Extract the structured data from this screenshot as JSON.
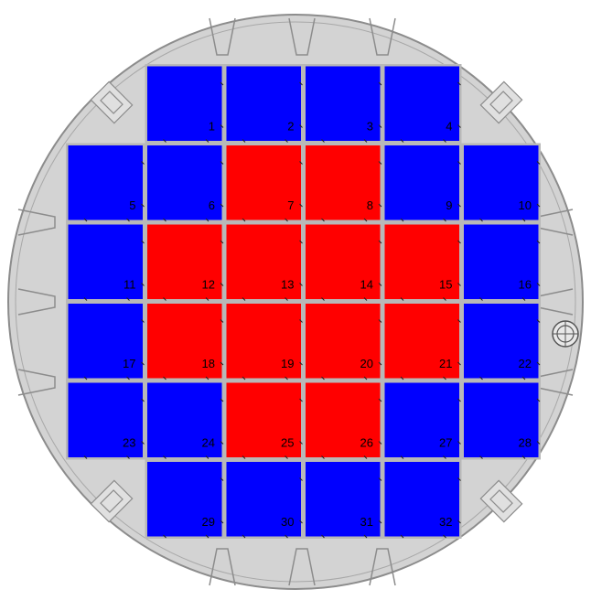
{
  "colors": {
    "background": "#ffffff",
    "vessel_fill": "#d3d3d3",
    "vessel_stroke": "#8c8c8c",
    "grid_line": "#b8b8b8",
    "assembly_blue": "#0000ff",
    "assembly_red": "#ff0000",
    "label": "#000000"
  },
  "layout_rows": [
    {
      "cols": [
        1,
        2,
        3,
        4
      ]
    },
    {
      "cols": [
        0,
        1,
        2,
        3,
        4,
        5
      ]
    },
    {
      "cols": [
        0,
        1,
        2,
        3,
        4,
        5
      ]
    },
    {
      "cols": [
        0,
        1,
        2,
        3,
        4,
        5
      ]
    },
    {
      "cols": [
        0,
        1,
        2,
        3,
        4,
        5
      ]
    },
    {
      "cols": [
        1,
        2,
        3,
        4
      ]
    }
  ],
  "assemblies": [
    {
      "id": "1",
      "type": "blue"
    },
    {
      "id": "2",
      "type": "blue"
    },
    {
      "id": "3",
      "type": "blue"
    },
    {
      "id": "4",
      "type": "blue"
    },
    {
      "id": "5",
      "type": "blue"
    },
    {
      "id": "6",
      "type": "blue"
    },
    {
      "id": "7",
      "type": "red"
    },
    {
      "id": "8",
      "type": "red"
    },
    {
      "id": "9",
      "type": "blue"
    },
    {
      "id": "10",
      "type": "blue"
    },
    {
      "id": "11",
      "type": "blue"
    },
    {
      "id": "12",
      "type": "red"
    },
    {
      "id": "13",
      "type": "red"
    },
    {
      "id": "14",
      "type": "red"
    },
    {
      "id": "15",
      "type": "red"
    },
    {
      "id": "16",
      "type": "blue"
    },
    {
      "id": "17",
      "type": "blue"
    },
    {
      "id": "18",
      "type": "red"
    },
    {
      "id": "19",
      "type": "red"
    },
    {
      "id": "20",
      "type": "red"
    },
    {
      "id": "21",
      "type": "red"
    },
    {
      "id": "22",
      "type": "blue"
    },
    {
      "id": "23",
      "type": "blue"
    },
    {
      "id": "24",
      "type": "blue"
    },
    {
      "id": "25",
      "type": "red"
    },
    {
      "id": "26",
      "type": "red"
    },
    {
      "id": "27",
      "type": "blue"
    },
    {
      "id": "28",
      "type": "blue"
    },
    {
      "id": "29",
      "type": "blue"
    },
    {
      "id": "30",
      "type": "blue"
    },
    {
      "id": "31",
      "type": "blue"
    },
    {
      "id": "32",
      "type": "blue"
    }
  ]
}
